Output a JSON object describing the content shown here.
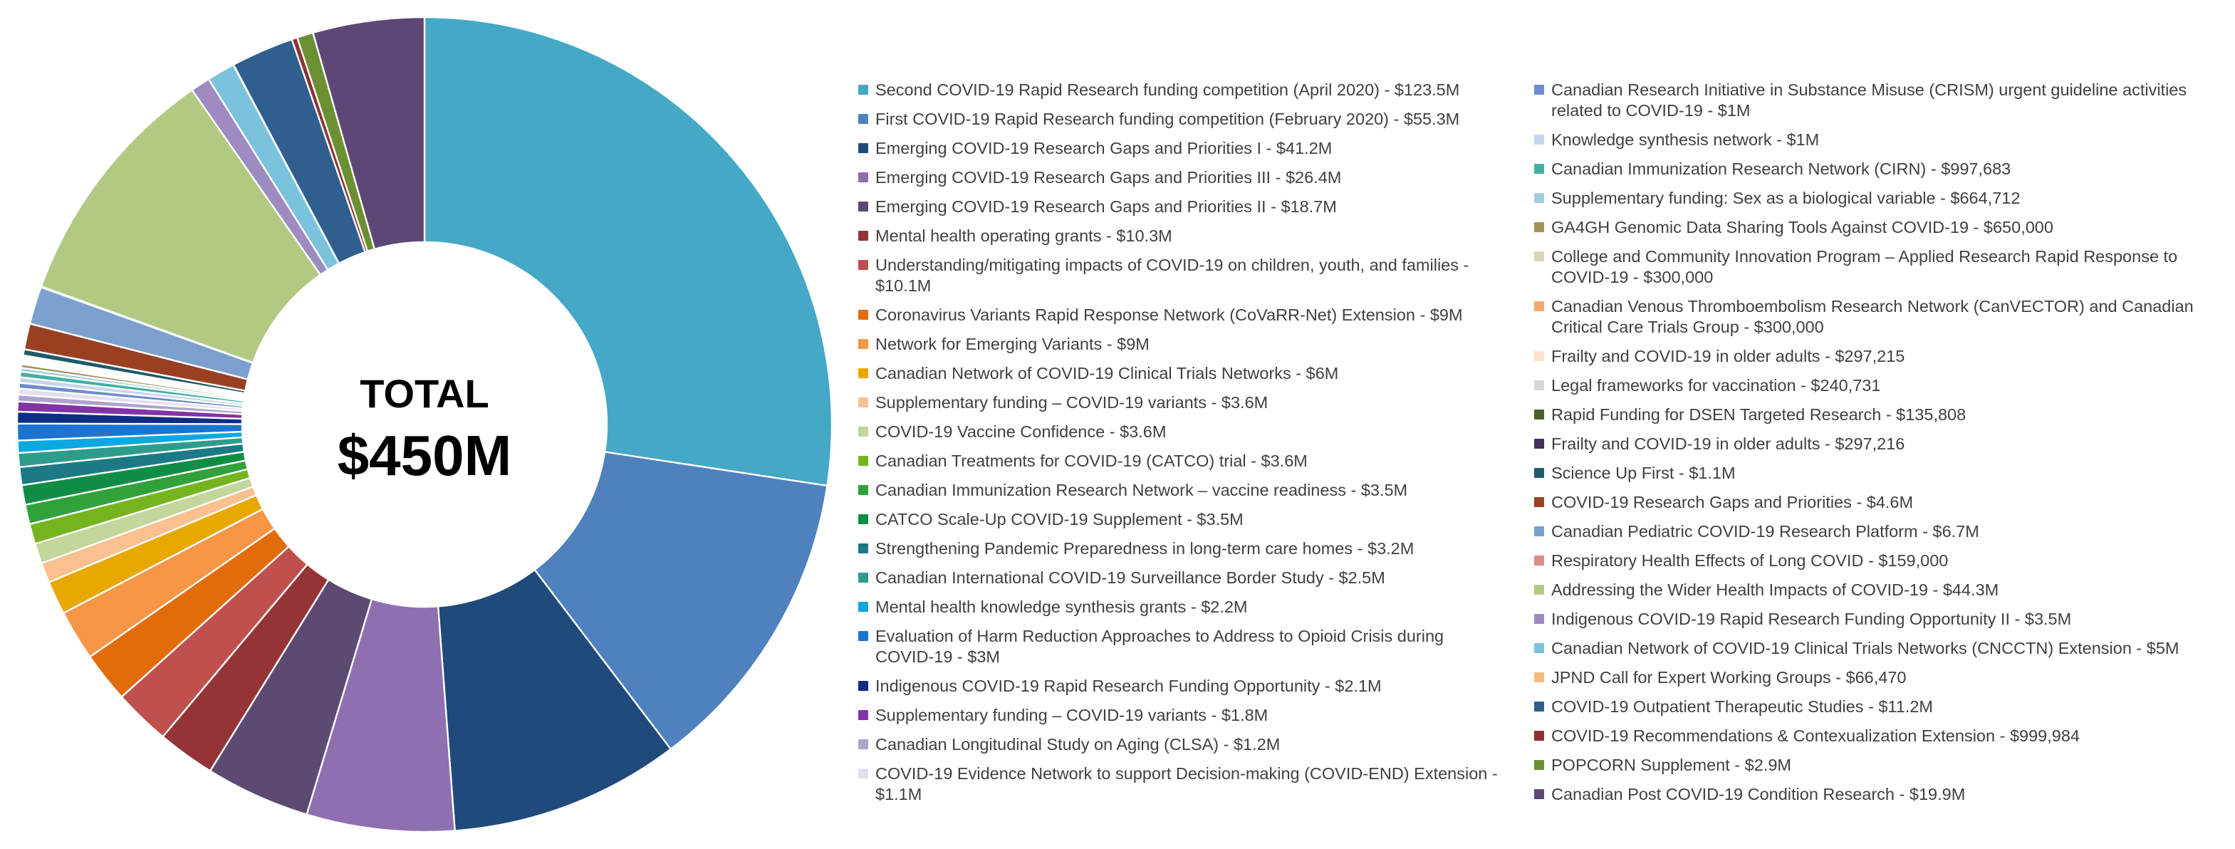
{
  "chart_data": {
    "type": "pie",
    "subtype": "donut",
    "center_label": "TOTAL",
    "center_value": "$450M",
    "legend_position": "right",
    "direction": "clockwise",
    "start_angle_deg": 0,
    "units": "millions USD/CAD as labeled",
    "series": [
      {
        "label": "Second COVID-19 Rapid Research funding competition (April 2020) - $123.5M",
        "value": 123.5,
        "color": "#44A8C6",
        "column": 1
      },
      {
        "label": "First COVID-19 Rapid Research funding competition (February 2020) - $55.3M",
        "value": 55.3,
        "color": "#4E81BD",
        "column": 1
      },
      {
        "label": "Emerging COVID-19 Research Gaps and Priorities I - $41.2M",
        "value": 41.2,
        "color": "#1F4A7B",
        "column": 1
      },
      {
        "label": "Emerging COVID-19 Research Gaps and Priorities III - $26.4M",
        "value": 26.4,
        "color": "#8E6FB0",
        "column": 1
      },
      {
        "label": "Emerging COVID-19 Research Gaps and Priorities II - $18.7M",
        "value": 18.7,
        "color": "#5D4A73",
        "column": 1
      },
      {
        "label": "Mental health operating grants - $10.3M",
        "value": 10.3,
        "color": "#943437",
        "column": 1
      },
      {
        "label": "Understanding/mitigating impacts of COVID-19 on children, youth, and families - $10.1M",
        "value": 10.1,
        "color": "#C0504D",
        "column": 1
      },
      {
        "label": "Coronavirus Variants Rapid Response Network (CoVaRR-Net) Extension - $9M",
        "value": 9,
        "color": "#E36C0A",
        "column": 1
      },
      {
        "label": "Network for Emerging Variants - $9M",
        "value": 9,
        "color": "#F79646",
        "column": 1
      },
      {
        "label": "Canadian Network of COVID-19 Clinical Trials Networks - $6M",
        "value": 6,
        "color": "#E9A800",
        "column": 1
      },
      {
        "label": "Supplementary funding – COVID-19 variants - $3.6M",
        "value": 3.6,
        "color": "#FAC090",
        "column": 1
      },
      {
        "label": "COVID-19 Vaccine Confidence - $3.6M",
        "value": 3.6,
        "color": "#C3D69B",
        "column": 1
      },
      {
        "label": "Canadian Treatments for COVID-19 (CATCO) trial - $3.6M",
        "value": 3.6,
        "color": "#76B41F",
        "column": 1
      },
      {
        "label": "Canadian Immunization Research Network – vaccine readiness - $3.5M",
        "value": 3.5,
        "color": "#31A13A",
        "column": 1
      },
      {
        "label": "CATCO Scale-Up COVID-19 Supplement - $3.5M",
        "value": 3.5,
        "color": "#0E8E44",
        "column": 1
      },
      {
        "label": "Strengthening Pandemic Preparedness in long-term care homes - $3.2M",
        "value": 3.2,
        "color": "#1B7A85",
        "column": 1
      },
      {
        "label": "Canadian International COVID-19 Surveillance Border Study - $2.5M",
        "value": 2.5,
        "color": "#2E9C8C",
        "column": 1
      },
      {
        "label": "Mental health knowledge synthesis grants - $2.2M",
        "value": 2.2,
        "color": "#0AA8E0",
        "column": 1
      },
      {
        "label": "Evaluation of Harm Reduction Approaches to Address to Opioid Crisis during COVID-19 - $3M",
        "value": 3,
        "color": "#1B75D0",
        "column": 1
      },
      {
        "label": "Indigenous COVID-19 Rapid Research Funding Opportunity - $2.1M",
        "value": 2.1,
        "color": "#0F2D85",
        "column": 1
      },
      {
        "label": "Supplementary funding – COVID-19 variants - $1.8M",
        "value": 1.8,
        "color": "#8233A5",
        "column": 1
      },
      {
        "label": "Canadian Longitudinal Study on Aging (CLSA) - $1.2M",
        "value": 1.2,
        "color": "#AFA2CE",
        "column": 1
      },
      {
        "label": "COVID-19 Evidence Network to support Decision-making (COVID-END) Extension - $1.1M",
        "value": 1.1,
        "color": "#E4DEEE",
        "column": 1
      },
      {
        "label": "Canadian Research Initiative in Substance Misuse (CRISM) urgent guideline activities related to COVID-19 - $1M",
        "value": 1,
        "color": "#6D8DCE",
        "column": 2
      },
      {
        "label": "Knowledge synthesis network - $1M",
        "value": 1,
        "color": "#C5D5EC",
        "column": 2
      },
      {
        "label": "Canadian Immunization Research Network (CIRN) - $997,683",
        "value": 0.997683,
        "color": "#41B0A2",
        "column": 2
      },
      {
        "label": "Supplementary funding: Sex as a biological variable - $664,712",
        "value": 0.664712,
        "color": "#A3CEE2",
        "column": 2
      },
      {
        "label": "GA4GH Genomic Data Sharing Tools Against COVID-19 - $650,000",
        "value": 0.65,
        "color": "#A09355",
        "column": 2
      },
      {
        "label": "College and Community Innovation Program – Applied Research Rapid Response to COVID-19 - $300,000",
        "value": 0.3,
        "color": "#D8D5B8",
        "column": 2
      },
      {
        "label": "Canadian Venous Thromboembolism Research Network (CanVECTOR) and Canadian Critical Care Trials Group - $300,000",
        "value": 0.3,
        "color": "#F2A96C",
        "column": 2
      },
      {
        "label": "Frailty and COVID-19 in older adults - $297,215",
        "value": 0.297215,
        "color": "#FBE3CC",
        "column": 2
      },
      {
        "label": "Legal frameworks for vaccination - $240,731",
        "value": 0.240731,
        "color": "#D6D6D6",
        "column": 2
      },
      {
        "label": "Rapid Funding for DSEN Targeted Research - $135,808",
        "value": 0.135808,
        "color": "#4C5F28",
        "column": 2
      },
      {
        "label": "Frailty and COVID-19 in older adults - $297,216",
        "value": 0.297216,
        "color": "#443458",
        "column": 2
      },
      {
        "label": "Science Up First - $1.1M",
        "value": 1.1,
        "color": "#1F5A68",
        "column": 2
      },
      {
        "label": "COVID-19 Research Gaps and Priorities - $4.6M",
        "value": 4.6,
        "color": "#9A4022",
        "column": 2
      },
      {
        "label": "Canadian Pediatric COVID-19 Research Platform - $6.7M",
        "value": 6.7,
        "color": "#7BA0CD",
        "column": 2
      },
      {
        "label": "Respiratory Health Effects of Long COVID - $159,000",
        "value": 0.159,
        "color": "#D98C8A",
        "column": 2
      },
      {
        "label": "Addressing the Wider Health Impacts of COVID-19 - $44.3M",
        "value": 44.3,
        "color": "#B2C983",
        "column": 2
      },
      {
        "label": "Indigenous COVID-19 Rapid Research Funding Opportunity II - $3.5M",
        "value": 3.5,
        "color": "#9E8BC2",
        "column": 2
      },
      {
        "label": "Canadian Network of COVID-19 Clinical Trials Networks (CNCCTN) Extension - $5M",
        "value": 5,
        "color": "#7BC3DC",
        "column": 2
      },
      {
        "label": "JPND Call for Expert Working Groups - $66,470",
        "value": 0.06647,
        "color": "#F6BB7E",
        "column": 2
      },
      {
        "label": "COVID-19 Outpatient Therapeutic Studies - $11.2M",
        "value": 11.2,
        "color": "#2E5F8E",
        "column": 2
      },
      {
        "label": "COVID-19 Recommendations & Contexualization Extension - $999,984",
        "value": 0.999984,
        "color": "#8E3032",
        "column": 2
      },
      {
        "label": "POPCORN Supplement - $2.9M",
        "value": 2.9,
        "color": "#6B8F33",
        "column": 2
      },
      {
        "label": "Canadian Post COVID-19 Condition Research - $19.9M",
        "value": 19.9,
        "color": "#5C4776",
        "column": 2
      }
    ]
  }
}
